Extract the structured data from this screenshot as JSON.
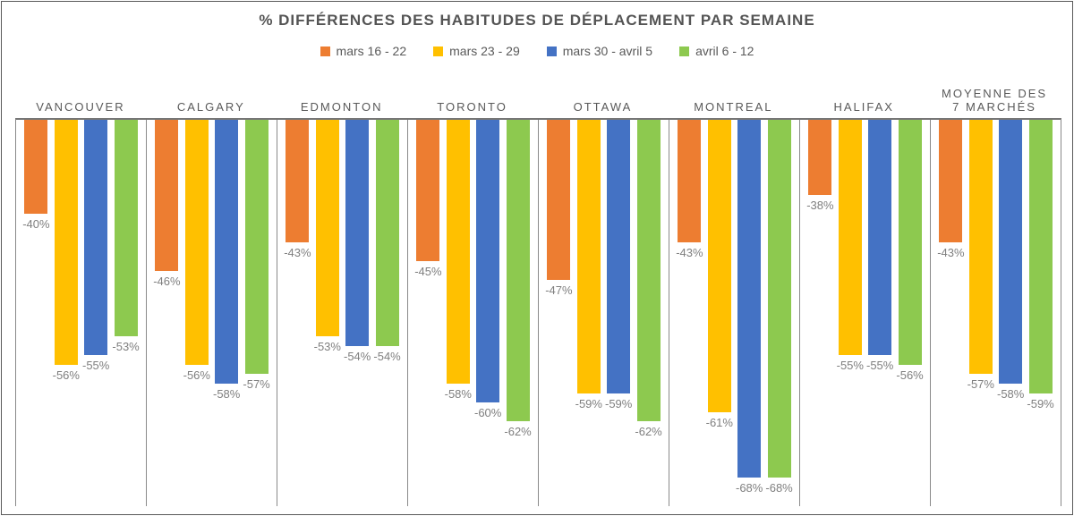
{
  "title": "% DIFFÉRENCES DES HABITUDES DE DÉPLACEMENT PAR SEMAINE",
  "chart_data": {
    "type": "bar",
    "title": "% DIFFÉRENCES DES HABITUDES DE DÉPLACEMENT PAR SEMAINE",
    "legend_position": "top",
    "grid": false,
    "value_suffix": "%",
    "categories": [
      "VANCOUVER",
      "CALGARY",
      "EDMONTON",
      "TORONTO",
      "OTTAWA",
      "MONTREAL",
      "HALIFAX",
      "MOYENNE DES 7 MARCHÉS"
    ],
    "series": [
      {
        "name": "mars 16 - 22",
        "color": "#ED7D31",
        "values": [
          -40,
          -46,
          -43,
          -45,
          -47,
          -43,
          -38,
          -43
        ]
      },
      {
        "name": "mars 23 - 29",
        "color": "#FFC000",
        "values": [
          -56,
          -56,
          -53,
          -58,
          -59,
          -61,
          -55,
          -57
        ]
      },
      {
        "name": "mars 30 - avril 5",
        "color": "#4472C4",
        "values": [
          -55,
          -58,
          -54,
          -60,
          -59,
          -68,
          -55,
          -58
        ]
      },
      {
        "name": "avril 6 - 12",
        "color": "#8DC94F",
        "values": [
          -53,
          -57,
          -54,
          -62,
          -62,
          -68,
          -56,
          -59
        ]
      }
    ],
    "axis": {
      "visible_top_value": -30,
      "visible_bottom_value": -71
    }
  },
  "colors": {
    "title_text": "#545454",
    "category_text": "#595959",
    "value_label_text": "#7f7f7f",
    "line": "#8a8a8a",
    "border": "#595959"
  }
}
